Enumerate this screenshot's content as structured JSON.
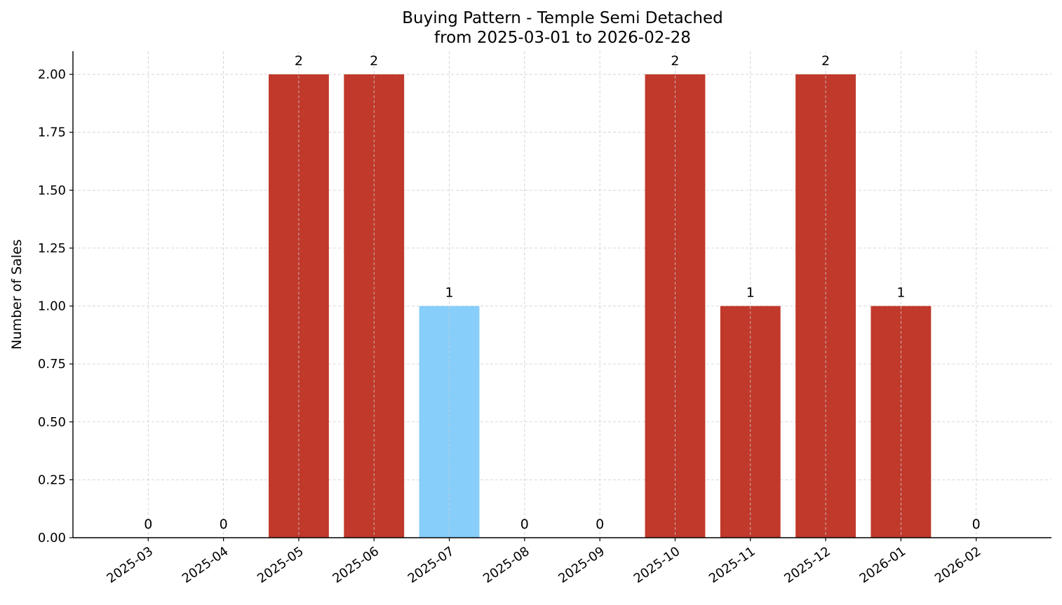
{
  "chart_data": {
    "type": "bar",
    "title": "Buying Pattern - Temple Semi Detached",
    "subtitle": "from 2025-03-01 to 2026-02-28",
    "y_label": "Number of Sales",
    "categories": [
      "2025-03",
      "2025-04",
      "2025-05",
      "2025-06",
      "2025-07",
      "2025-08",
      "2025-09",
      "2025-10",
      "2025-11",
      "2025-12",
      "2026-01",
      "2026-02"
    ],
    "values": [
      0,
      0,
      2,
      2,
      1,
      0,
      0,
      2,
      1,
      2,
      1,
      0
    ],
    "colors": [
      "#c0392b",
      "#c0392b",
      "#c0392b",
      "#c0392b",
      "#87cefa",
      "#c0392b",
      "#c0392b",
      "#c0392b",
      "#c0392b",
      "#c0392b",
      "#c0392b",
      "#c0392b"
    ],
    "ylim": [
      0,
      2.1
    ],
    "yticks": [
      {
        "value": 0,
        "label": "0.00"
      },
      {
        "value": 0.25,
        "label": "0.25"
      },
      {
        "value": 0.5,
        "label": "0.50"
      },
      {
        "value": 0.75,
        "label": "0.75"
      },
      {
        "value": 1,
        "label": "1.00"
      },
      {
        "value": 1.25,
        "label": "1.25"
      },
      {
        "value": 1.5,
        "label": "1.50"
      },
      {
        "value": 1.75,
        "label": "1.75"
      },
      {
        "value": 2,
        "label": "2.00"
      }
    ],
    "grid": true
  }
}
